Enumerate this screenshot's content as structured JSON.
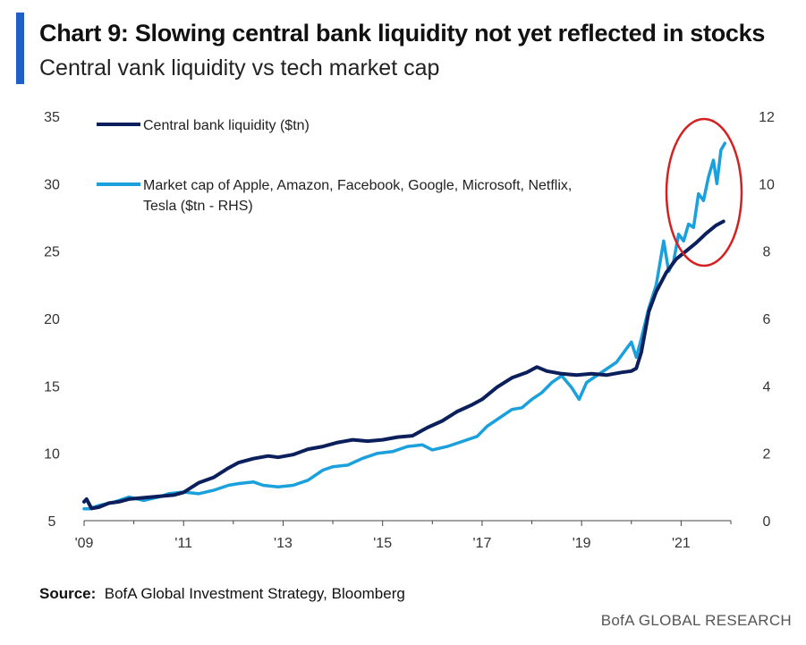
{
  "header": {
    "title": "Chart 9: Slowing central bank liquidity not yet reflected in stocks",
    "subtitle": "Central vank liquidity vs tech market cap"
  },
  "footer": {
    "source_label": "Source:",
    "source_text": "BofA Global Investment Strategy, Bloomberg",
    "brand": "BofA GLOBAL RESEARCH"
  },
  "colors": {
    "accent": "#1f5fc9",
    "series1": "#0b1f5c",
    "series2": "#1aa0dc",
    "highlight": "#d62020"
  },
  "chart_data": {
    "type": "line",
    "title": "Chart 9: Slowing central bank liquidity not yet reflected in stocks",
    "subtitle": "Central vank liquidity vs tech market cap",
    "x_ticks": [
      "'09",
      "'11",
      "'13",
      "'15",
      "'17",
      "'19",
      "'21"
    ],
    "x_tick_years": [
      2009,
      2011,
      2013,
      2015,
      2017,
      2019,
      2021
    ],
    "xlim": [
      2009,
      2022
    ],
    "ylim_left": [
      5,
      35
    ],
    "y_ticks_left": [
      5,
      10,
      15,
      20,
      25,
      30,
      35
    ],
    "ylim_right": [
      0,
      12
    ],
    "y_ticks_right": [
      0,
      2,
      4,
      6,
      8,
      10,
      12
    ],
    "legend_position": "top-left",
    "annotation": "red circle around the 2021 rise of both series",
    "series": [
      {
        "name": "Central bank liquidity ($tn)",
        "axis": "left",
        "x": [
          2009.0,
          2009.05,
          2009.15,
          2009.3,
          2009.5,
          2009.7,
          2009.9,
          2010.2,
          2010.5,
          2010.8,
          2011.0,
          2011.3,
          2011.6,
          2011.9,
          2012.1,
          2012.4,
          2012.7,
          2012.9,
          2013.2,
          2013.5,
          2013.8,
          2014.1,
          2014.4,
          2014.7,
          2015.0,
          2015.3,
          2015.6,
          2015.9,
          2016.2,
          2016.5,
          2016.8,
          2017.0,
          2017.3,
          2017.6,
          2017.9,
          2018.1,
          2018.3,
          2018.6,
          2018.9,
          2019.2,
          2019.5,
          2019.8,
          2020.0,
          2020.1,
          2020.2,
          2020.35,
          2020.5,
          2020.7,
          2020.9,
          2021.1,
          2021.3,
          2021.5,
          2021.7,
          2021.85
        ],
        "y": [
          6.4,
          6.6,
          5.9,
          6.0,
          6.3,
          6.4,
          6.6,
          6.7,
          6.8,
          6.9,
          7.1,
          7.8,
          8.2,
          8.9,
          9.3,
          9.6,
          9.8,
          9.7,
          9.9,
          10.3,
          10.5,
          10.8,
          11.0,
          10.9,
          11.0,
          11.2,
          11.3,
          11.9,
          12.4,
          13.1,
          13.6,
          14.0,
          14.9,
          15.6,
          16.0,
          16.4,
          16.1,
          15.9,
          15.8,
          15.9,
          15.8,
          16.0,
          16.1,
          16.3,
          17.5,
          20.5,
          22.0,
          23.4,
          24.4,
          25.0,
          25.6,
          26.3,
          26.9,
          27.2
        ]
      },
      {
        "name": "Market cap of Apple, Amazon, Facebook, Google, Microsoft, Netflix, Tesla ($tn - RHS)",
        "axis": "right",
        "x": [
          2009.0,
          2009.1,
          2009.3,
          2009.6,
          2009.9,
          2010.2,
          2010.5,
          2010.7,
          2011.0,
          2011.3,
          2011.6,
          2011.9,
          2012.1,
          2012.4,
          2012.6,
          2012.9,
          2013.2,
          2013.5,
          2013.8,
          2014.0,
          2014.3,
          2014.6,
          2014.9,
          2015.2,
          2015.5,
          2015.8,
          2016.0,
          2016.3,
          2016.6,
          2016.9,
          2017.1,
          2017.3,
          2017.6,
          2017.8,
          2018.0,
          2018.2,
          2018.4,
          2018.6,
          2018.8,
          2018.95,
          2019.1,
          2019.3,
          2019.5,
          2019.7,
          2019.9,
          2020.0,
          2020.1,
          2020.2,
          2020.35,
          2020.5,
          2020.65,
          2020.75,
          2020.85,
          2020.95,
          2021.05,
          2021.15,
          2021.25,
          2021.35,
          2021.45,
          2021.55,
          2021.65,
          2021.72,
          2021.8,
          2021.88
        ],
        "y": [
          0.35,
          0.35,
          0.45,
          0.55,
          0.7,
          0.6,
          0.7,
          0.8,
          0.85,
          0.8,
          0.9,
          1.05,
          1.1,
          1.15,
          1.05,
          1.0,
          1.05,
          1.2,
          1.5,
          1.6,
          1.65,
          1.85,
          2.0,
          2.05,
          2.2,
          2.25,
          2.1,
          2.2,
          2.35,
          2.5,
          2.8,
          3.0,
          3.3,
          3.35,
          3.6,
          3.8,
          4.1,
          4.3,
          3.95,
          3.6,
          4.1,
          4.3,
          4.5,
          4.7,
          5.1,
          5.3,
          4.85,
          5.4,
          6.3,
          7.0,
          8.3,
          7.4,
          7.7,
          8.5,
          8.3,
          8.8,
          8.7,
          9.7,
          9.5,
          10.2,
          10.7,
          10.0,
          11.0,
          11.2
        ]
      }
    ]
  }
}
